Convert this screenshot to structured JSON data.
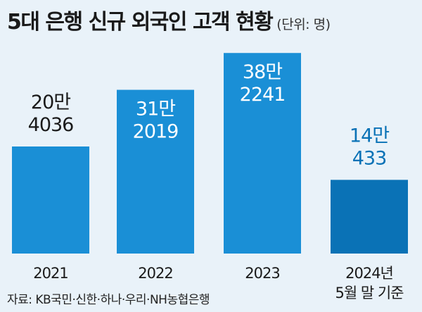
{
  "chart_data": {
    "type": "bar",
    "title": "5대 은행 신규 외국인 고객 현황",
    "unit": "(단위: 명)",
    "categories": [
      {
        "line1": "2021",
        "line2": ""
      },
      {
        "line1": "2022",
        "line2": ""
      },
      {
        "line1": "2023",
        "line2": ""
      },
      {
        "line1": "2024년",
        "line2": "5월 말 기준"
      }
    ],
    "values": [
      204036,
      312019,
      382241,
      140433
    ],
    "value_labels": [
      {
        "line1": "20만",
        "line2": "4036"
      },
      {
        "line1": "31만",
        "line2": "2019"
      },
      {
        "line1": "38만",
        "line2": "2241"
      },
      {
        "line1": "14만",
        "line2": "433"
      }
    ],
    "ylim": [
      0,
      400000
    ],
    "grid": false,
    "colors": {
      "bar": "#1a8fd6",
      "bar_highlight": "#0a72b6",
      "label_dark": "#1a1a1a",
      "label_light": "#ffffff",
      "label_highlight": "#0a72b6"
    }
  },
  "source": "자료: KB국민·신한·하나·우리·NH농협은행"
}
